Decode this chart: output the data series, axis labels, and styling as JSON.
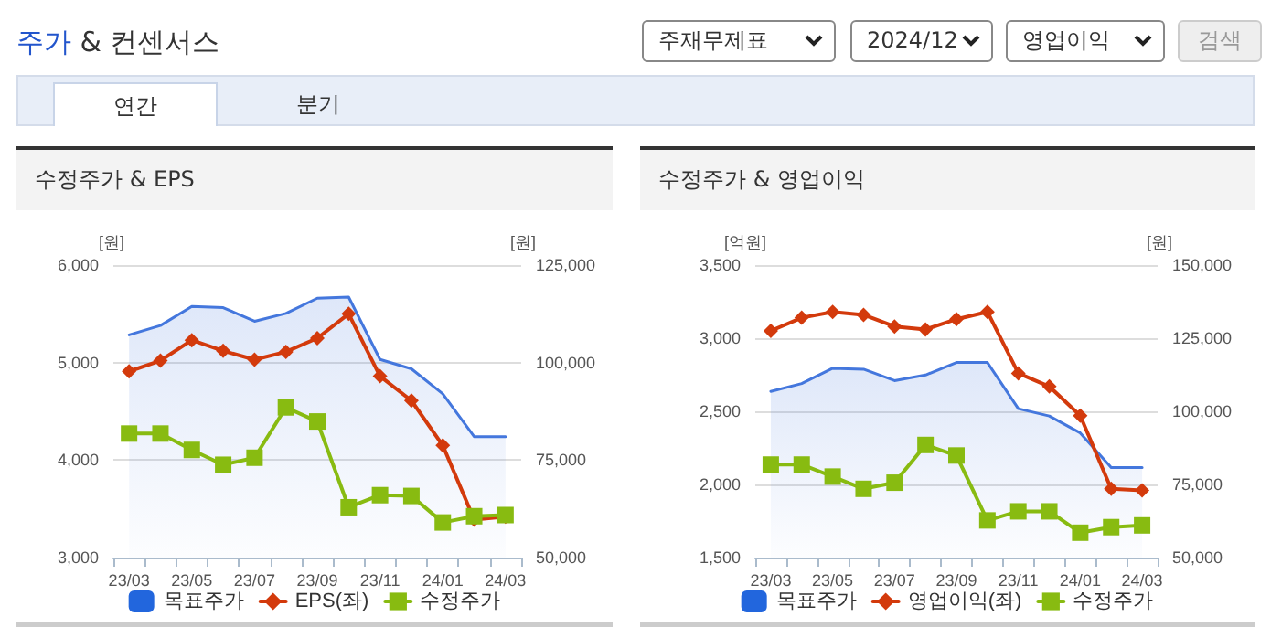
{
  "chart_data": [
    {
      "type": "other",
      "title": "주가 & 컨센서스",
      "annotations": [
        "주재무제표",
        "2024/12",
        "영업이익",
        "검색",
        "연간",
        "분기"
      ]
    },
    {
      "type": "line",
      "title": "수정주가 & EPS",
      "ylabel": "[원]",
      "y2label": "[원]",
      "categories": [
        "23/03",
        null,
        "23/05",
        null,
        "23/07",
        null,
        "23/09",
        null,
        "23/11",
        null,
        "24/01",
        null,
        "24/03"
      ],
      "ylim": [
        3000,
        6000
      ],
      "yticks": [
        {
          "value": 3000,
          "label": "3,000"
        },
        {
          "value": 4000,
          "label": "4,000"
        },
        {
          "value": 5000,
          "label": "5,000"
        },
        {
          "value": 6000,
          "label": "6,000"
        }
      ],
      "y2lim": [
        50000,
        125000
      ],
      "y2ticks": [
        {
          "value": 50000,
          "label": "50,000"
        },
        {
          "value": 75000,
          "label": "75,000"
        },
        {
          "value": 100000,
          "label": "100,000"
        },
        {
          "value": 125000,
          "label": "125,000"
        }
      ],
      "grid": "y",
      "legend": "bottom",
      "series": [
        {
          "name": "목표주가",
          "type": "area",
          "axis": "y2",
          "color": "#4477dd",
          "marker": "none",
          "values": [
            107100,
            109500,
            114400,
            114100,
            110600,
            112600,
            116500,
            116800,
            100800,
            98400,
            92000,
            81000,
            81000
          ]
        },
        {
          "name": "EPS(좌)",
          "type": "line",
          "color": "#d33a0c",
          "marker": "diamond",
          "values": [
            4910,
            5020,
            5230,
            5120,
            5030,
            5110,
            5250,
            5500,
            4860,
            4610,
            4150,
            3390,
            3420
          ]
        },
        {
          "name": "수정주가",
          "type": "line",
          "axis": "y2",
          "color": "#88bb11",
          "marker": "square",
          "values": [
            81800,
            81800,
            77600,
            73800,
            75600,
            88500,
            84900,
            62900,
            66000,
            65800,
            59000,
            60600,
            60900
          ]
        }
      ]
    },
    {
      "type": "line",
      "title": "수정주가 & 영업이익",
      "ylabel": "[억원]",
      "y2label": "[원]",
      "categories": [
        "23/03",
        null,
        "23/05",
        null,
        "23/07",
        null,
        "23/09",
        null,
        "23/11",
        null,
        "24/01",
        null,
        "24/03"
      ],
      "ylim": [
        1500,
        3500
      ],
      "yticks": [
        {
          "value": 1500,
          "label": "1,500"
        },
        {
          "value": 2000,
          "label": "2,000"
        },
        {
          "value": 2500,
          "label": "2,500"
        },
        {
          "value": 3000,
          "label": "3,000"
        },
        {
          "value": 3500,
          "label": "3,500"
        }
      ],
      "y2lim": [
        50000,
        150000
      ],
      "y2ticks": [
        {
          "value": 50000,
          "label": "50,000"
        },
        {
          "value": 75000,
          "label": "75,000"
        },
        {
          "value": 100000,
          "label": "100,000"
        },
        {
          "value": 125000,
          "label": "125,000"
        },
        {
          "value": 150000,
          "label": "150,000"
        }
      ],
      "grid": "y",
      "legend": "bottom",
      "series": [
        {
          "name": "목표주가",
          "type": "area",
          "axis": "y2",
          "color": "#4477dd",
          "marker": "none",
          "values": [
            106800,
            109500,
            114700,
            114400,
            110500,
            112400,
            116700,
            116700,
            100900,
            98400,
            92600,
            80800,
            80800
          ]
        },
        {
          "name": "영업이익(좌)",
          "type": "line",
          "color": "#d33a0c",
          "marker": "diamond",
          "values": [
            3050,
            3140,
            3180,
            3160,
            3080,
            3060,
            3130,
            3180,
            2760,
            2670,
            2470,
            1970,
            1960
          ]
        },
        {
          "name": "수정주가",
          "type": "line",
          "axis": "y2",
          "color": "#88bb11",
          "marker": "square",
          "values": [
            81800,
            81800,
            77700,
            73500,
            75600,
            88500,
            84900,
            62700,
            65800,
            65800,
            58500,
            60400,
            61000
          ]
        }
      ]
    }
  ]
}
